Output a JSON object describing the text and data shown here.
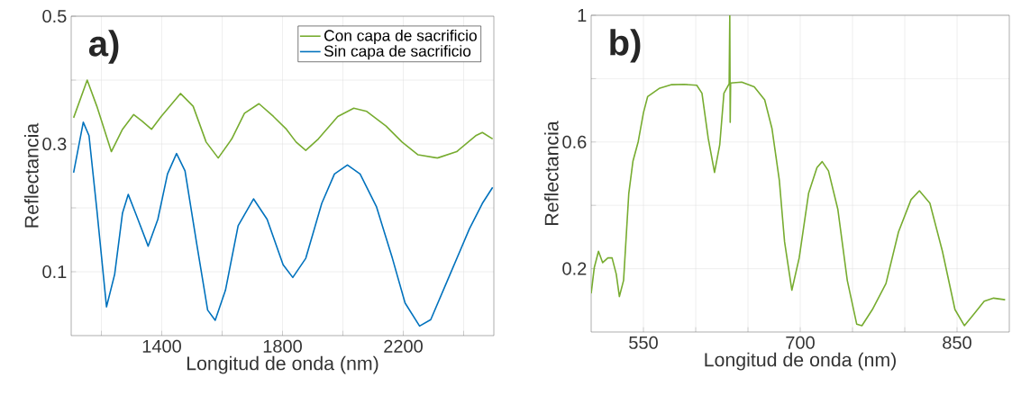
{
  "chart_data": [
    {
      "type": "line",
      "xlabel": "Longitud de onda (nm)",
      "ylabel": "Reflectancia",
      "annotations": [
        "a)"
      ],
      "grid": true,
      "legend": "top right",
      "xlim": [
        1100,
        2500
      ],
      "ylim": [
        0,
        0.5
      ],
      "xticks": [
        {
          "value": 1200,
          "label": null
        },
        1400,
        {
          "value": 1600,
          "label": null
        },
        1800,
        {
          "value": 2000,
          "label": null
        },
        2200,
        {
          "value": 2400,
          "label": null
        }
      ],
      "yticks": [
        0.1,
        {
          "value": 0.2,
          "label": null
        },
        0.3,
        {
          "value": 0.4,
          "label": null
        },
        0.5
      ],
      "series": [
        {
          "name": "Con capa de sacrificio",
          "color": "#77ac30",
          "x": [
            1108,
            1153,
            1185,
            1233,
            1270,
            1307,
            1334,
            1366,
            1398,
            1462,
            1504,
            1547,
            1587,
            1632,
            1674,
            1722,
            1770,
            1813,
            1845,
            1877,
            1919,
            1983,
            2036,
            2079,
            2143,
            2196,
            2249,
            2313,
            2377,
            2440,
            2462,
            2496
          ],
          "values": [
            0.341,
            0.4,
            0.359,
            0.288,
            0.323,
            0.346,
            0.336,
            0.323,
            0.343,
            0.379,
            0.359,
            0.303,
            0.278,
            0.308,
            0.348,
            0.363,
            0.343,
            0.323,
            0.303,
            0.29,
            0.308,
            0.343,
            0.356,
            0.351,
            0.328,
            0.303,
            0.283,
            0.278,
            0.288,
            0.313,
            0.318,
            0.308
          ]
        },
        {
          "name": "Sin capa de sacrificio",
          "color": "#0072bd",
          "x": [
            1108,
            1140,
            1159,
            1185,
            1217,
            1244,
            1270,
            1289,
            1313,
            1355,
            1387,
            1419,
            1449,
            1477,
            1515,
            1552,
            1577,
            1611,
            1653,
            1704,
            1749,
            1802,
            1834,
            1877,
            1930,
            1972,
            2015,
            2057,
            2111,
            2164,
            2206,
            2254,
            2291,
            2355,
            2419,
            2462,
            2496
          ],
          "values": [
            0.255,
            0.334,
            0.313,
            0.197,
            0.045,
            0.096,
            0.192,
            0.221,
            0.192,
            0.14,
            0.182,
            0.253,
            0.285,
            0.258,
            0.146,
            0.04,
            0.024,
            0.071,
            0.172,
            0.214,
            0.182,
            0.111,
            0.091,
            0.121,
            0.207,
            0.253,
            0.267,
            0.253,
            0.202,
            0.121,
            0.051,
            0.015,
            0.025,
            0.096,
            0.167,
            0.207,
            0.232
          ]
        }
      ]
    },
    {
      "type": "line",
      "xlabel": "Longitud de onda (nm)",
      "ylabel": "Reflectancia",
      "annotations": [
        "b)"
      ],
      "grid": true,
      "xlim": [
        500,
        900
      ],
      "ylim": [
        0,
        1
      ],
      "xticks": [
        550,
        {
          "value": 600,
          "label": null
        },
        {
          "value": 650,
          "label": null
        },
        700,
        {
          "value": 750,
          "label": null
        },
        {
          "value": 800,
          "label": null
        },
        850
      ],
      "yticks": [
        0.2,
        {
          "value": 0.4,
          "label": null
        },
        0.6,
        {
          "value": 0.8,
          "label": null
        },
        1
      ],
      "series": [
        {
          "color": "#77ac30",
          "x": [
            500,
            503,
            507,
            511,
            516,
            520,
            524,
            527,
            531,
            536,
            540,
            545,
            550,
            554,
            565,
            577,
            589,
            601,
            606,
            612,
            618,
            623,
            627,
            632,
            632.6,
            633.0,
            633.4,
            644,
            656,
            666,
            673,
            680,
            685,
            692,
            699,
            708,
            716,
            721,
            727,
            736,
            745,
            754,
            759,
            769,
            782,
            794,
            806,
            814,
            824,
            836,
            848,
            857,
            866,
            876,
            885,
            896
          ],
          "values": [
            0.122,
            0.204,
            0.255,
            0.219,
            0.234,
            0.234,
            0.183,
            0.112,
            0.163,
            0.438,
            0.54,
            0.601,
            0.692,
            0.743,
            0.769,
            0.781,
            0.782,
            0.779,
            0.754,
            0.611,
            0.504,
            0.591,
            0.754,
            0.784,
            1.0,
            0.662,
            0.786,
            0.789,
            0.774,
            0.733,
            0.642,
            0.479,
            0.285,
            0.132,
            0.234,
            0.438,
            0.519,
            0.538,
            0.509,
            0.387,
            0.163,
            0.025,
            0.02,
            0.071,
            0.153,
            0.316,
            0.418,
            0.446,
            0.407,
            0.255,
            0.071,
            0.02,
            0.056,
            0.097,
            0.107,
            0.102
          ]
        }
      ]
    }
  ]
}
